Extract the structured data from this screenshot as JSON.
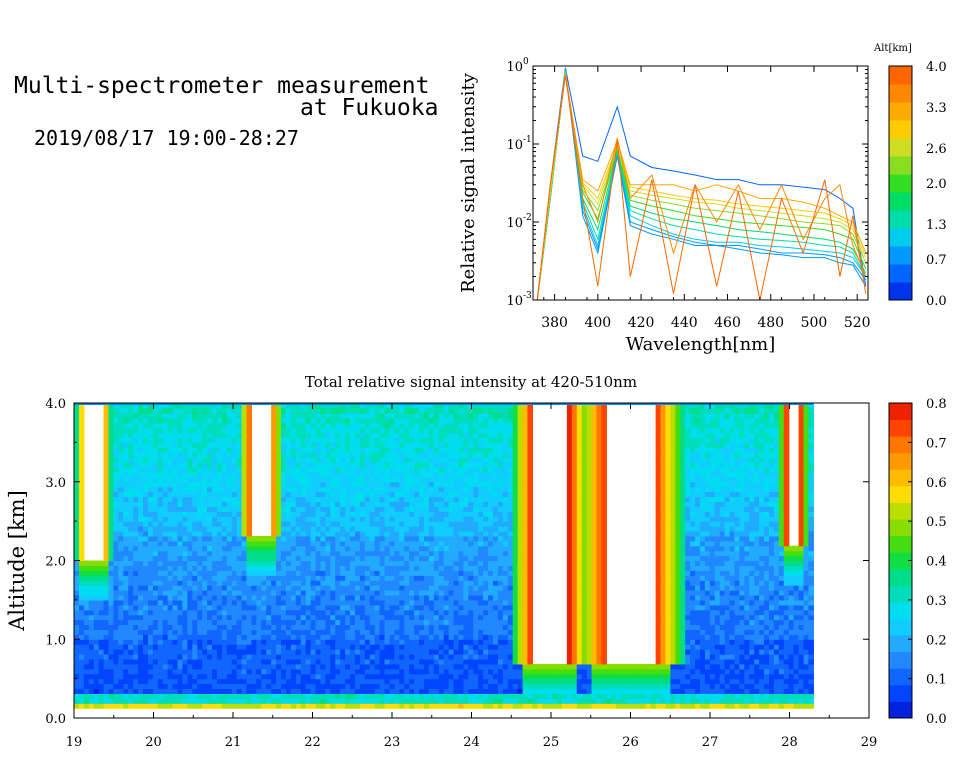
{
  "header": {
    "title_line1": "Multi-spectrometer measurement",
    "title_line2": "at Fukuoka",
    "date_range": "2019/08/17 19:00-28:27"
  },
  "spectrum": {
    "ylabel": "Relative signal intensity",
    "xlabel": "Wavelength[nm]",
    "colorbar_title": "Alt[km]",
    "y_ticks": [
      {
        "label": "10",
        "exp": "0",
        "value": 1
      },
      {
        "label": "10",
        "exp": "-1",
        "value": 0.1
      },
      {
        "label": "10",
        "exp": "-2",
        "value": 0.01
      },
      {
        "label": "10",
        "exp": "-3",
        "value": 0.001
      }
    ],
    "x_ticks": [
      "380",
      "400",
      "420",
      "440",
      "460",
      "480",
      "500",
      "520"
    ],
    "colorbar_ticks": [
      "4.0",
      "3.3",
      "2.6",
      "2.0",
      "1.3",
      "0.7",
      "0.0"
    ]
  },
  "heatmap": {
    "title": "Total relative signal intensity at 420-510nm",
    "ylabel": "Altitude [km]",
    "x_ticks": [
      "19",
      "20",
      "21",
      "22",
      "23",
      "24",
      "25",
      "26",
      "27",
      "28",
      "29"
    ],
    "y_ticks": [
      "0.0",
      "1.0",
      "2.0",
      "3.0",
      "4.0"
    ],
    "colorbar_ticks": [
      "0.8",
      "0.7",
      "0.6",
      "0.5",
      "0.4",
      "0.3",
      "0.2",
      "0.1",
      "0.0"
    ]
  },
  "colors": {
    "alt_scale": [
      "#0033ee",
      "#0066ff",
      "#0099ff",
      "#00ccee",
      "#00ddaa",
      "#00dd66",
      "#33dd22",
      "#88dd22",
      "#ccdd22",
      "#ffcc00",
      "#ffaa00",
      "#ff8800",
      "#ff6600"
    ],
    "intensity_scale": [
      "#0022dd",
      "#0044ff",
      "#1166ff",
      "#2288ff",
      "#22aaff",
      "#11ccff",
      "#00ddee",
      "#00ddbb",
      "#00dd88",
      "#11dd44",
      "#44dd11",
      "#88dd00",
      "#bbdd00",
      "#ffdd00",
      "#ffbb00",
      "#ff9900",
      "#ff7700",
      "#ff4400",
      "#ee2200"
    ]
  },
  "chart_data": [
    {
      "type": "line",
      "xlabel": "Wavelength[nm]",
      "ylabel": "Relative signal intensity",
      "yscale": "log",
      "xlim": [
        370,
        525
      ],
      "ylim": [
        0.001,
        1
      ],
      "legend": "colorbar right",
      "colorbar_label": "Alt[km]",
      "colorbar_range": [
        0.0,
        4.0
      ],
      "x": [
        372,
        378,
        385,
        393,
        400,
        409,
        415,
        425,
        435,
        445,
        455,
        465,
        475,
        485,
        495,
        505,
        512,
        518,
        524
      ],
      "series": [
        {
          "altitude": 0.2,
          "values": [
            0.001,
            0.03,
            0.95,
            0.07,
            0.06,
            0.3,
            0.07,
            0.05,
            0.045,
            0.04,
            0.035,
            0.035,
            0.03,
            0.03,
            0.028,
            0.026,
            0.02,
            0.015,
            0.0015
          ]
        },
        {
          "altitude": 0.5,
          "values": [
            0.001,
            0.02,
            0.92,
            0.012,
            0.004,
            0.07,
            0.009,
            0.007,
            0.006,
            0.005,
            0.005,
            0.0045,
            0.004,
            0.0038,
            0.0035,
            0.0035,
            0.003,
            0.0028,
            0.0015
          ]
        },
        {
          "altitude": 0.8,
          "values": [
            0.001,
            0.02,
            0.9,
            0.014,
            0.0045,
            0.075,
            0.01,
            0.008,
            0.0065,
            0.0055,
            0.005,
            0.005,
            0.0045,
            0.004,
            0.004,
            0.0038,
            0.0035,
            0.003,
            0.0018
          ]
        },
        {
          "altitude": 1.1,
          "values": [
            0.001,
            0.02,
            0.88,
            0.016,
            0.005,
            0.08,
            0.012,
            0.009,
            0.007,
            0.006,
            0.0055,
            0.0055,
            0.005,
            0.0048,
            0.0045,
            0.0042,
            0.004,
            0.0035,
            0.002
          ]
        },
        {
          "altitude": 1.4,
          "values": [
            0.001,
            0.02,
            0.86,
            0.018,
            0.006,
            0.08,
            0.014,
            0.011,
            0.009,
            0.008,
            0.007,
            0.0065,
            0.006,
            0.0058,
            0.0055,
            0.005,
            0.0048,
            0.004,
            0.002
          ]
        },
        {
          "altitude": 1.7,
          "values": [
            0.001,
            0.022,
            0.85,
            0.02,
            0.008,
            0.085,
            0.016,
            0.013,
            0.011,
            0.01,
            0.009,
            0.008,
            0.0075,
            0.007,
            0.0065,
            0.006,
            0.0055,
            0.0045,
            0.0022
          ]
        },
        {
          "altitude": 2.0,
          "values": [
            0.001,
            0.022,
            0.84,
            0.024,
            0.011,
            0.09,
            0.019,
            0.016,
            0.014,
            0.012,
            0.011,
            0.01,
            0.0095,
            0.009,
            0.0085,
            0.008,
            0.007,
            0.006,
            0.0025
          ]
        },
        {
          "altitude": 2.3,
          "values": [
            0.001,
            0.022,
            0.83,
            0.026,
            0.014,
            0.09,
            0.022,
            0.019,
            0.017,
            0.015,
            0.014,
            0.013,
            0.012,
            0.011,
            0.01,
            0.0095,
            0.009,
            0.007,
            0.003
          ]
        },
        {
          "altitude": 2.6,
          "values": [
            0.001,
            0.025,
            0.82,
            0.03,
            0.017,
            0.095,
            0.025,
            0.022,
            0.02,
            0.018,
            0.017,
            0.015,
            0.014,
            0.013,
            0.012,
            0.011,
            0.01,
            0.008,
            0.003
          ]
        },
        {
          "altitude": 3.0,
          "values": [
            0.001,
            0.025,
            0.8,
            0.032,
            0.02,
            0.1,
            0.028,
            0.025,
            0.022,
            0.02,
            0.019,
            0.017,
            0.016,
            0.015,
            0.014,
            0.013,
            0.011,
            0.009,
            0.0035
          ]
        },
        {
          "altitude": 3.3,
          "values": [
            0.001,
            0.028,
            0.8,
            0.035,
            0.025,
            0.11,
            0.03,
            0.03,
            0.03,
            0.025,
            0.03,
            0.025,
            0.02,
            0.02,
            0.018,
            0.015,
            0.012,
            0.01,
            0.004
          ]
        },
        {
          "altitude": 3.7,
          "values": [
            0.001,
            0.03,
            0.78,
            0.03,
            0.01,
            0.12,
            0.02,
            0.04,
            0.004,
            0.03,
            0.01,
            0.03,
            0.008,
            0.03,
            0.006,
            0.02,
            0.03,
            0.005,
            0.002
          ]
        },
        {
          "altitude": 4.0,
          "values": [
            0.001,
            0.03,
            0.76,
            0.02,
            0.0015,
            0.11,
            0.002,
            0.035,
            0.0012,
            0.03,
            0.0015,
            0.025,
            0.001,
            0.02,
            0.004,
            0.035,
            0.002,
            0.012,
            0.0012
          ]
        }
      ],
      "x_ticks": [
        380,
        400,
        420,
        440,
        460,
        480,
        500,
        520
      ]
    },
    {
      "type": "heatmap",
      "title": "Total relative signal intensity at 420-510nm",
      "xlabel": "",
      "ylabel": "Altitude [km]",
      "xlim": [
        19,
        29
      ],
      "ylim": [
        0.0,
        4.0
      ],
      "data_xlim": [
        19,
        28.3
      ],
      "colorbar_range": [
        0.0,
        0.8
      ],
      "features": [
        {
          "description": "plume",
          "x_center": 21.35,
          "half_width": 0.12,
          "y_min": 2.3
        },
        {
          "description": "plume",
          "x_center": 25.0,
          "half_width": 0.22,
          "y_min": 0.7
        },
        {
          "description": "plume",
          "x_center": 26.0,
          "half_width": 0.3,
          "y_min": 0.7
        },
        {
          "description": "plume",
          "x_center": 28.05,
          "half_width": 0.08,
          "y_min": 2.2
        },
        {
          "description": "plume",
          "x_center": 19.25,
          "half_width": 0.1,
          "y_min": 2.0
        }
      ],
      "surface_band_altitude": [
        0.15,
        0.3
      ]
    }
  ]
}
